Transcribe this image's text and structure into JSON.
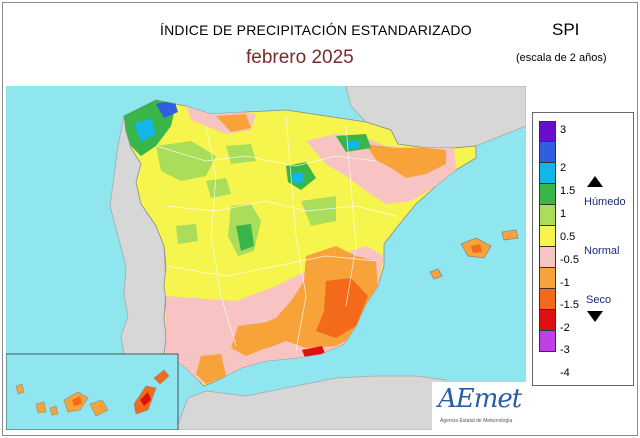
{
  "title": "ÍNDICE DE PRECIPITACIÓN ESTANDARIZADO",
  "subtitle": "febrero  2025",
  "index_label": "SPI",
  "scale_note": "(escala de 2 años)",
  "legend": {
    "ticks": [
      "3",
      "2",
      "1.5",
      "1",
      "0.5",
      "-0.5",
      "-1",
      "-1.5",
      "-2",
      "-3",
      "-4"
    ],
    "colors": [
      "#6a0dcc",
      "#2f5fe0",
      "#12b6e8",
      "#39b54a",
      "#a9dd5a",
      "#f5f54d",
      "#f7c3c3",
      "#f7a33a",
      "#f26a1a",
      "#e01010",
      "#c040e8"
    ],
    "classes": {
      "wet": "Húmedo",
      "normal": "Normal",
      "dry": "Seco"
    }
  },
  "logo": {
    "name": "AEmet",
    "subtitle": "Agencia Estatal de Meteorología"
  }
}
